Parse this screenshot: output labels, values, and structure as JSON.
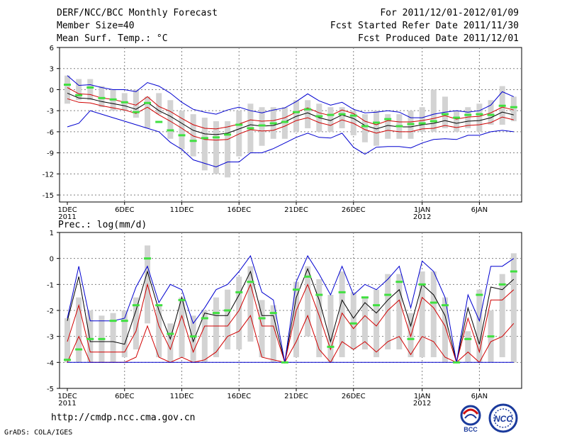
{
  "header": {
    "title": "DERF/NCC/BCC Monthly Forecast",
    "member_size": "Member Size=40",
    "variable": "Mean Surf. Temp.: °C",
    "period": "For 2011/12/01-2012/01/09",
    "started": "Fcst Started Refer Date 2011/11/30",
    "produced": "Fcst Produced Date 2011/12/01"
  },
  "footer": {
    "url": "http://cmdp.ncc.cma.gov.cn",
    "grads": "GrADS: COLA/IGES",
    "logo_bcc": "BCC",
    "logo_ncc": "NCC"
  },
  "colors": {
    "ensemble_box": "#d3d3d3",
    "mean": "#000000",
    "inner": "#d00000",
    "outer": "#0000d0",
    "median": "#40e040",
    "grid": "#808080"
  },
  "chart_data": [
    {
      "type": "line",
      "title": "Mean Surf. Temp.: °C",
      "days": 40,
      "x_tick_labels": [
        "1DEC",
        "6DEC",
        "11DEC",
        "16DEC",
        "21DEC",
        "26DEC",
        "1JAN",
        "6JAN"
      ],
      "x_tick_days": [
        0,
        5,
        10,
        15,
        20,
        25,
        31,
        36
      ],
      "x_year_labels": [
        "2011",
        "2012"
      ],
      "x_year_days": [
        0,
        31
      ],
      "ylim": [
        -16,
        6
      ],
      "y_ticks": [
        6,
        3,
        0,
        -3,
        -6,
        -9,
        -12,
        -15
      ],
      "box_low": [
        -2,
        -1.5,
        -1.5,
        -2.5,
        -3,
        -3,
        -4,
        -5.5,
        -3.5,
        -7,
        -8.5,
        -9.5,
        -11.5,
        -12,
        -12.5,
        -9.5,
        -9,
        -8,
        -7,
        -7,
        -6,
        -5.5,
        -6,
        -6,
        -5.5,
        -6.5,
        -7.5,
        -8,
        -7,
        -7,
        -7,
        -6,
        -6,
        -5.5,
        -6,
        -5.5,
        -6,
        -5,
        -5,
        -4.5
      ],
      "box_high": [
        2,
        1.5,
        1.5,
        0.5,
        0,
        -0.5,
        0,
        -1,
        -0.5,
        -1.5,
        -3,
        -3.5,
        -4,
        -4.5,
        -4.5,
        -3,
        -2,
        -2.5,
        -2.5,
        -2.5,
        -1.5,
        -1.5,
        -2,
        -2.5,
        -2.5,
        -3,
        -3.5,
        -3,
        -3.5,
        -3.5,
        -3,
        -2.5,
        0,
        -1,
        -3,
        -2.5,
        -2,
        -1.5,
        0.5,
        -1
      ],
      "series": [
        {
          "name": "Ensemble mean",
          "color": "#000000",
          "values": [
            -0.5,
            -1.2,
            -1.3,
            -1.7,
            -2.0,
            -2.3,
            -2.8,
            -1.8,
            -3.0,
            -3.8,
            -4.8,
            -5.8,
            -6.3,
            -6.4,
            -6.2,
            -5.6,
            -5.0,
            -5.2,
            -5.1,
            -4.6,
            -3.8,
            -3.3,
            -4.0,
            -4.4,
            -3.6,
            -4.1,
            -5.1,
            -5.6,
            -5.1,
            -5.3,
            -5.3,
            -5.0,
            -4.8,
            -4.4,
            -4.8,
            -4.5,
            -4.4,
            -4.0,
            -3.2,
            -3.6
          ]
        },
        {
          "name": "Inner range high",
          "color": "#d00000",
          "values": [
            0.3,
            -0.6,
            -0.7,
            -1.2,
            -1.4,
            -1.8,
            -2.2,
            -1.0,
            -2.4,
            -3.1,
            -4.1,
            -5.0,
            -5.5,
            -5.6,
            -5.3,
            -4.9,
            -4.3,
            -4.5,
            -4.4,
            -4.0,
            -3.2,
            -2.6,
            -3.3,
            -3.7,
            -2.9,
            -3.4,
            -4.5,
            -5.0,
            -4.4,
            -4.6,
            -4.6,
            -4.4,
            -4.1,
            -3.7,
            -4.2,
            -3.9,
            -3.8,
            -3.3,
            -2.5,
            -2.9
          ]
        },
        {
          "name": "Inner range low",
          "color": "#d00000",
          "values": [
            -1.3,
            -1.8,
            -1.9,
            -2.3,
            -2.6,
            -2.9,
            -3.4,
            -2.5,
            -3.6,
            -4.5,
            -5.5,
            -6.6,
            -7.1,
            -7.2,
            -7.1,
            -6.3,
            -5.7,
            -5.9,
            -5.8,
            -5.2,
            -4.4,
            -4.0,
            -4.7,
            -5.1,
            -4.3,
            -4.8,
            -5.7,
            -6.2,
            -5.8,
            -6.0,
            -6.0,
            -5.6,
            -5.5,
            -5.1,
            -5.4,
            -5.1,
            -5.0,
            -4.7,
            -3.9,
            -4.3
          ]
        },
        {
          "name": "Outer range high",
          "color": "#0000d0",
          "values": [
            2.0,
            0.6,
            0.7,
            0.3,
            0.0,
            0.0,
            -0.3,
            1.0,
            0.5,
            -0.5,
            -1.8,
            -2.8,
            -3.2,
            -3.5,
            -2.9,
            -2.5,
            -3.0,
            -3.3,
            -2.9,
            -2.6,
            -1.7,
            -0.6,
            -1.6,
            -2.2,
            -1.8,
            -2.8,
            -3.3,
            -3.2,
            -3.0,
            -3.2,
            -4.0,
            -4.0,
            -3.5,
            -3.2,
            -3.0,
            -3.2,
            -3.0,
            -2.2,
            -0.3,
            -1.0
          ]
        },
        {
          "name": "Outer range low",
          "color": "#0000d0",
          "values": [
            -5.3,
            -4.8,
            -3.0,
            -3.5,
            -4.0,
            -4.5,
            -5.0,
            -5.5,
            -6.0,
            -7.5,
            -8.5,
            -10.0,
            -10.5,
            -11.0,
            -10.3,
            -10.3,
            -9.0,
            -9.0,
            -8.4,
            -7.6,
            -6.8,
            -6.2,
            -6.8,
            -6.9,
            -6.2,
            -8.2,
            -9.2,
            -8.2,
            -8.1,
            -8.1,
            -8.3,
            -7.6,
            -7.1,
            -7.0,
            -7.1,
            -6.5,
            -6.5,
            -6.0,
            -5.8,
            -6.0
          ]
        }
      ],
      "median": [
        0.7,
        -0.8,
        0.3,
        -1.2,
        -1.4,
        -1.8,
        -3.2,
        -1.9,
        -4.6,
        -5.8,
        -6.5,
        -7.3,
        -6.9,
        -6.8,
        -6.4,
        -5.0,
        -5.5,
        -5.1,
        -4.8,
        -4.6,
        -3.2,
        -2.8,
        -3.8,
        -3.6,
        -3.5,
        -3.7,
        -5.2,
        -4.7,
        -4.2,
        -5.2,
        -4.9,
        -4.8,
        -4.5,
        -3.5,
        -4.0,
        -3.6,
        -3.5,
        -3.6,
        -2.3,
        -2.5
      ]
    },
    {
      "type": "line",
      "title": "Prec.: log(mm/d)",
      "days": 40,
      "x_tick_labels": [
        "1DEC",
        "6DEC",
        "11DEC",
        "16DEC",
        "21DEC",
        "26DEC",
        "1JAN",
        "6JAN"
      ],
      "x_tick_days": [
        0,
        5,
        10,
        15,
        20,
        25,
        31,
        36
      ],
      "x_year_labels": [
        "2011",
        "2012"
      ],
      "x_year_days": [
        0,
        31
      ],
      "ylim": [
        -5,
        1
      ],
      "y_ticks": [
        1,
        0,
        -1,
        -2,
        -3,
        -4,
        -5
      ],
      "box_low": [
        -4,
        -4,
        -4,
        -4,
        -4,
        -3.8,
        -3.5,
        -2.5,
        -3.8,
        -4,
        -3.8,
        -4,
        -4,
        -3.8,
        -3.5,
        -3.5,
        -3.2,
        -3.8,
        -4,
        -4,
        -3.8,
        -3,
        -3.8,
        -4,
        -3.8,
        -3.5,
        -3.5,
        -3.8,
        -3.5,
        -3.5,
        -3.8,
        -3.8,
        -3.8,
        -4,
        -3.8,
        -4,
        -4,
        -4,
        -3.8,
        -4
      ],
      "box_high": [
        -2.3,
        -1.5,
        -2.0,
        -2.2,
        -2.1,
        -2.0,
        -1.5,
        0.5,
        -1.8,
        -2.5,
        -1.5,
        -2.2,
        -2.0,
        -1.5,
        -1.2,
        -0.7,
        -0.3,
        -1.6,
        -1.8,
        -4,
        -0.9,
        -0.3,
        -0.8,
        -1.4,
        -0.5,
        -1.3,
        -1.5,
        -1.2,
        -0.6,
        -0.6,
        -2.1,
        -0.5,
        -0.5,
        -1.5,
        -4,
        -2.8,
        -1.2,
        -2.0,
        -0.6,
        0.2
      ],
      "series": [
        {
          "name": "Ensemble mean",
          "color": "#000000",
          "values": [
            -2.4,
            -0.7,
            -3.2,
            -3.2,
            -3.2,
            -3.3,
            -2.0,
            -0.5,
            -2.0,
            -3.1,
            -1.5,
            -3.2,
            -2.1,
            -2.2,
            -2.2,
            -1.4,
            -0.5,
            -2.2,
            -2.2,
            -4.0,
            -1.5,
            -0.4,
            -1.6,
            -3.2,
            -1.6,
            -2.3,
            -1.7,
            -2.1,
            -1.6,
            -1.2,
            -2.6,
            -1.0,
            -1.4,
            -2.2,
            -4.0,
            -1.9,
            -3.3,
            -1.1,
            -1.2,
            -0.8
          ]
        },
        {
          "name": "Inner range high",
          "color": "#d00000",
          "values": [
            -3.2,
            -1.8,
            -3.6,
            -3.6,
            -3.6,
            -3.6,
            -2.8,
            -1.0,
            -2.6,
            -3.5,
            -2.2,
            -3.6,
            -2.6,
            -2.6,
            -2.6,
            -2.0,
            -1.0,
            -2.6,
            -2.6,
            -4.0,
            -2.0,
            -1.0,
            -2.2,
            -3.5,
            -2.1,
            -2.7,
            -2.2,
            -2.6,
            -2.0,
            -1.6,
            -3.0,
            -1.5,
            -1.9,
            -2.6,
            -4.0,
            -2.3,
            -3.6,
            -1.6,
            -1.6,
            -1.2
          ]
        },
        {
          "name": "Inner range low",
          "color": "#d00000",
          "values": [
            -4.0,
            -3.0,
            -4.0,
            -4.0,
            -4.0,
            -4.0,
            -3.8,
            -2.6,
            -3.8,
            -4.0,
            -3.8,
            -4.0,
            -3.9,
            -3.6,
            -3.0,
            -2.8,
            -2.2,
            -3.8,
            -3.9,
            -4.0,
            -3.2,
            -2.2,
            -3.5,
            -4.0,
            -3.2,
            -3.5,
            -3.2,
            -3.6,
            -3.2,
            -3.0,
            -3.7,
            -3.0,
            -3.2,
            -3.8,
            -4.0,
            -3.6,
            -4.0,
            -3.2,
            -3.0,
            -2.5
          ]
        },
        {
          "name": "Outer range high",
          "color": "#0000d0",
          "values": [
            -2.3,
            -0.3,
            -2.4,
            -2.4,
            -2.4,
            -2.3,
            -1.1,
            -0.3,
            -1.7,
            -1.0,
            -1.2,
            -2.5,
            -1.9,
            -1.2,
            -1.0,
            -0.5,
            0.1,
            -1.3,
            -1.6,
            -4.0,
            -0.9,
            0.1,
            -0.6,
            -1.4,
            -0.3,
            -1.4,
            -1.0,
            -1.2,
            -0.8,
            -0.3,
            -1.9,
            -0.1,
            -0.5,
            -1.5,
            -4.0,
            -1.4,
            -2.4,
            -0.3,
            -0.3,
            0.0
          ]
        },
        {
          "name": "Outer range low",
          "color": "#0000d0",
          "values": [
            -4,
            -4,
            -4,
            -4,
            -4,
            -4,
            -4,
            -4,
            -4,
            -4,
            -4,
            -4,
            -4,
            -4,
            -4,
            -4,
            -4,
            -4,
            -4,
            -4,
            -4,
            -4,
            -4,
            -4,
            -4,
            -4,
            -4,
            -4,
            -4,
            -4,
            -4,
            -4,
            -4,
            -4,
            -4,
            -4,
            -4,
            -4,
            -4,
            -4
          ]
        }
      ],
      "median": [
        -3.9,
        -3.5,
        -3.1,
        -3.1,
        -2.4,
        -2.4,
        -1.8,
        0.0,
        -1.8,
        -2.9,
        -1.6,
        -3.0,
        -2.3,
        -2.1,
        -2.0,
        -1.3,
        -0.9,
        -2.3,
        -2.1,
        -4.0,
        -1.2,
        -0.7,
        -1.4,
        -3.4,
        -1.3,
        -2.5,
        -1.5,
        -1.8,
        -1.4,
        -0.9,
        -3.1,
        -1.0,
        -1.7,
        -1.8,
        -4.0,
        -3.1,
        -1.4,
        -3.0,
        -1.0,
        -0.5
      ]
    }
  ]
}
